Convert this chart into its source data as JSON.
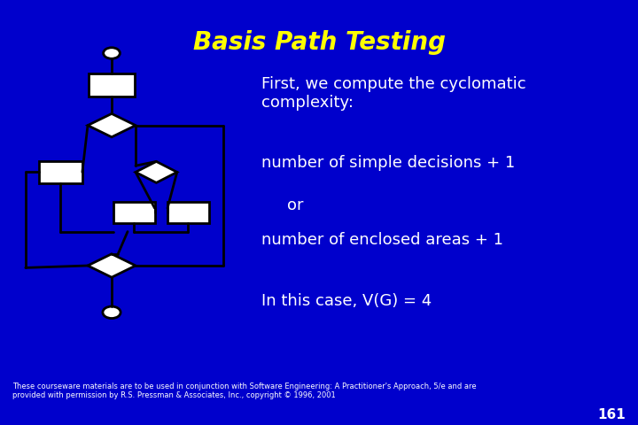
{
  "title": "Basis Path Testing",
  "title_color": "#FFFF00",
  "title_fontsize": 20,
  "bg_color": "#0000CC",
  "text_color": "#FFFFFF",
  "body_fontsize": 13,
  "footer_fontsize": 6,
  "page_fontsize": 11,
  "footer": "These courseware materials are to be used in conjunction with Software Engineering: A Practitioner's Approach, 5/e and are\nprovided with permission by R.S. Pressman & Associates, Inc., copyright © 1996, 2001",
  "page_num": "161",
  "shape_fill": "#FFFFFF",
  "shape_edge": "#000000",
  "line_color": "#000000",
  "line_width": 2.0
}
